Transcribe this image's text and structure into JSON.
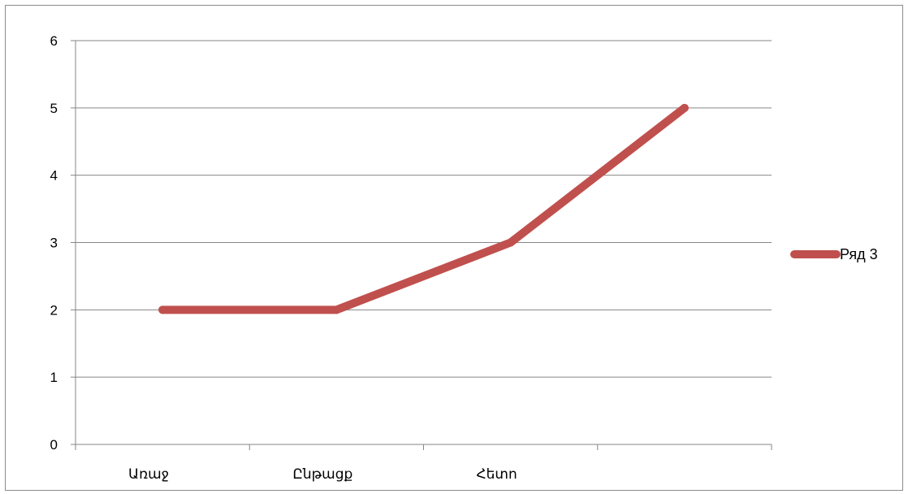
{
  "chart_data": {
    "type": "line",
    "title": "",
    "xlabel": "",
    "ylabel": "",
    "categories": [
      "Առաջ",
      "Ընթացք",
      "Հետո",
      ""
    ],
    "series": [
      {
        "name": "Ряд 3",
        "values": [
          2,
          2,
          3,
          5
        ],
        "color": "#c0504d"
      }
    ],
    "ylim": [
      0,
      6
    ],
    "yticks": [
      "0",
      "1",
      "2",
      "3",
      "4",
      "5",
      "6"
    ],
    "grid": true,
    "legend_position": "right"
  }
}
